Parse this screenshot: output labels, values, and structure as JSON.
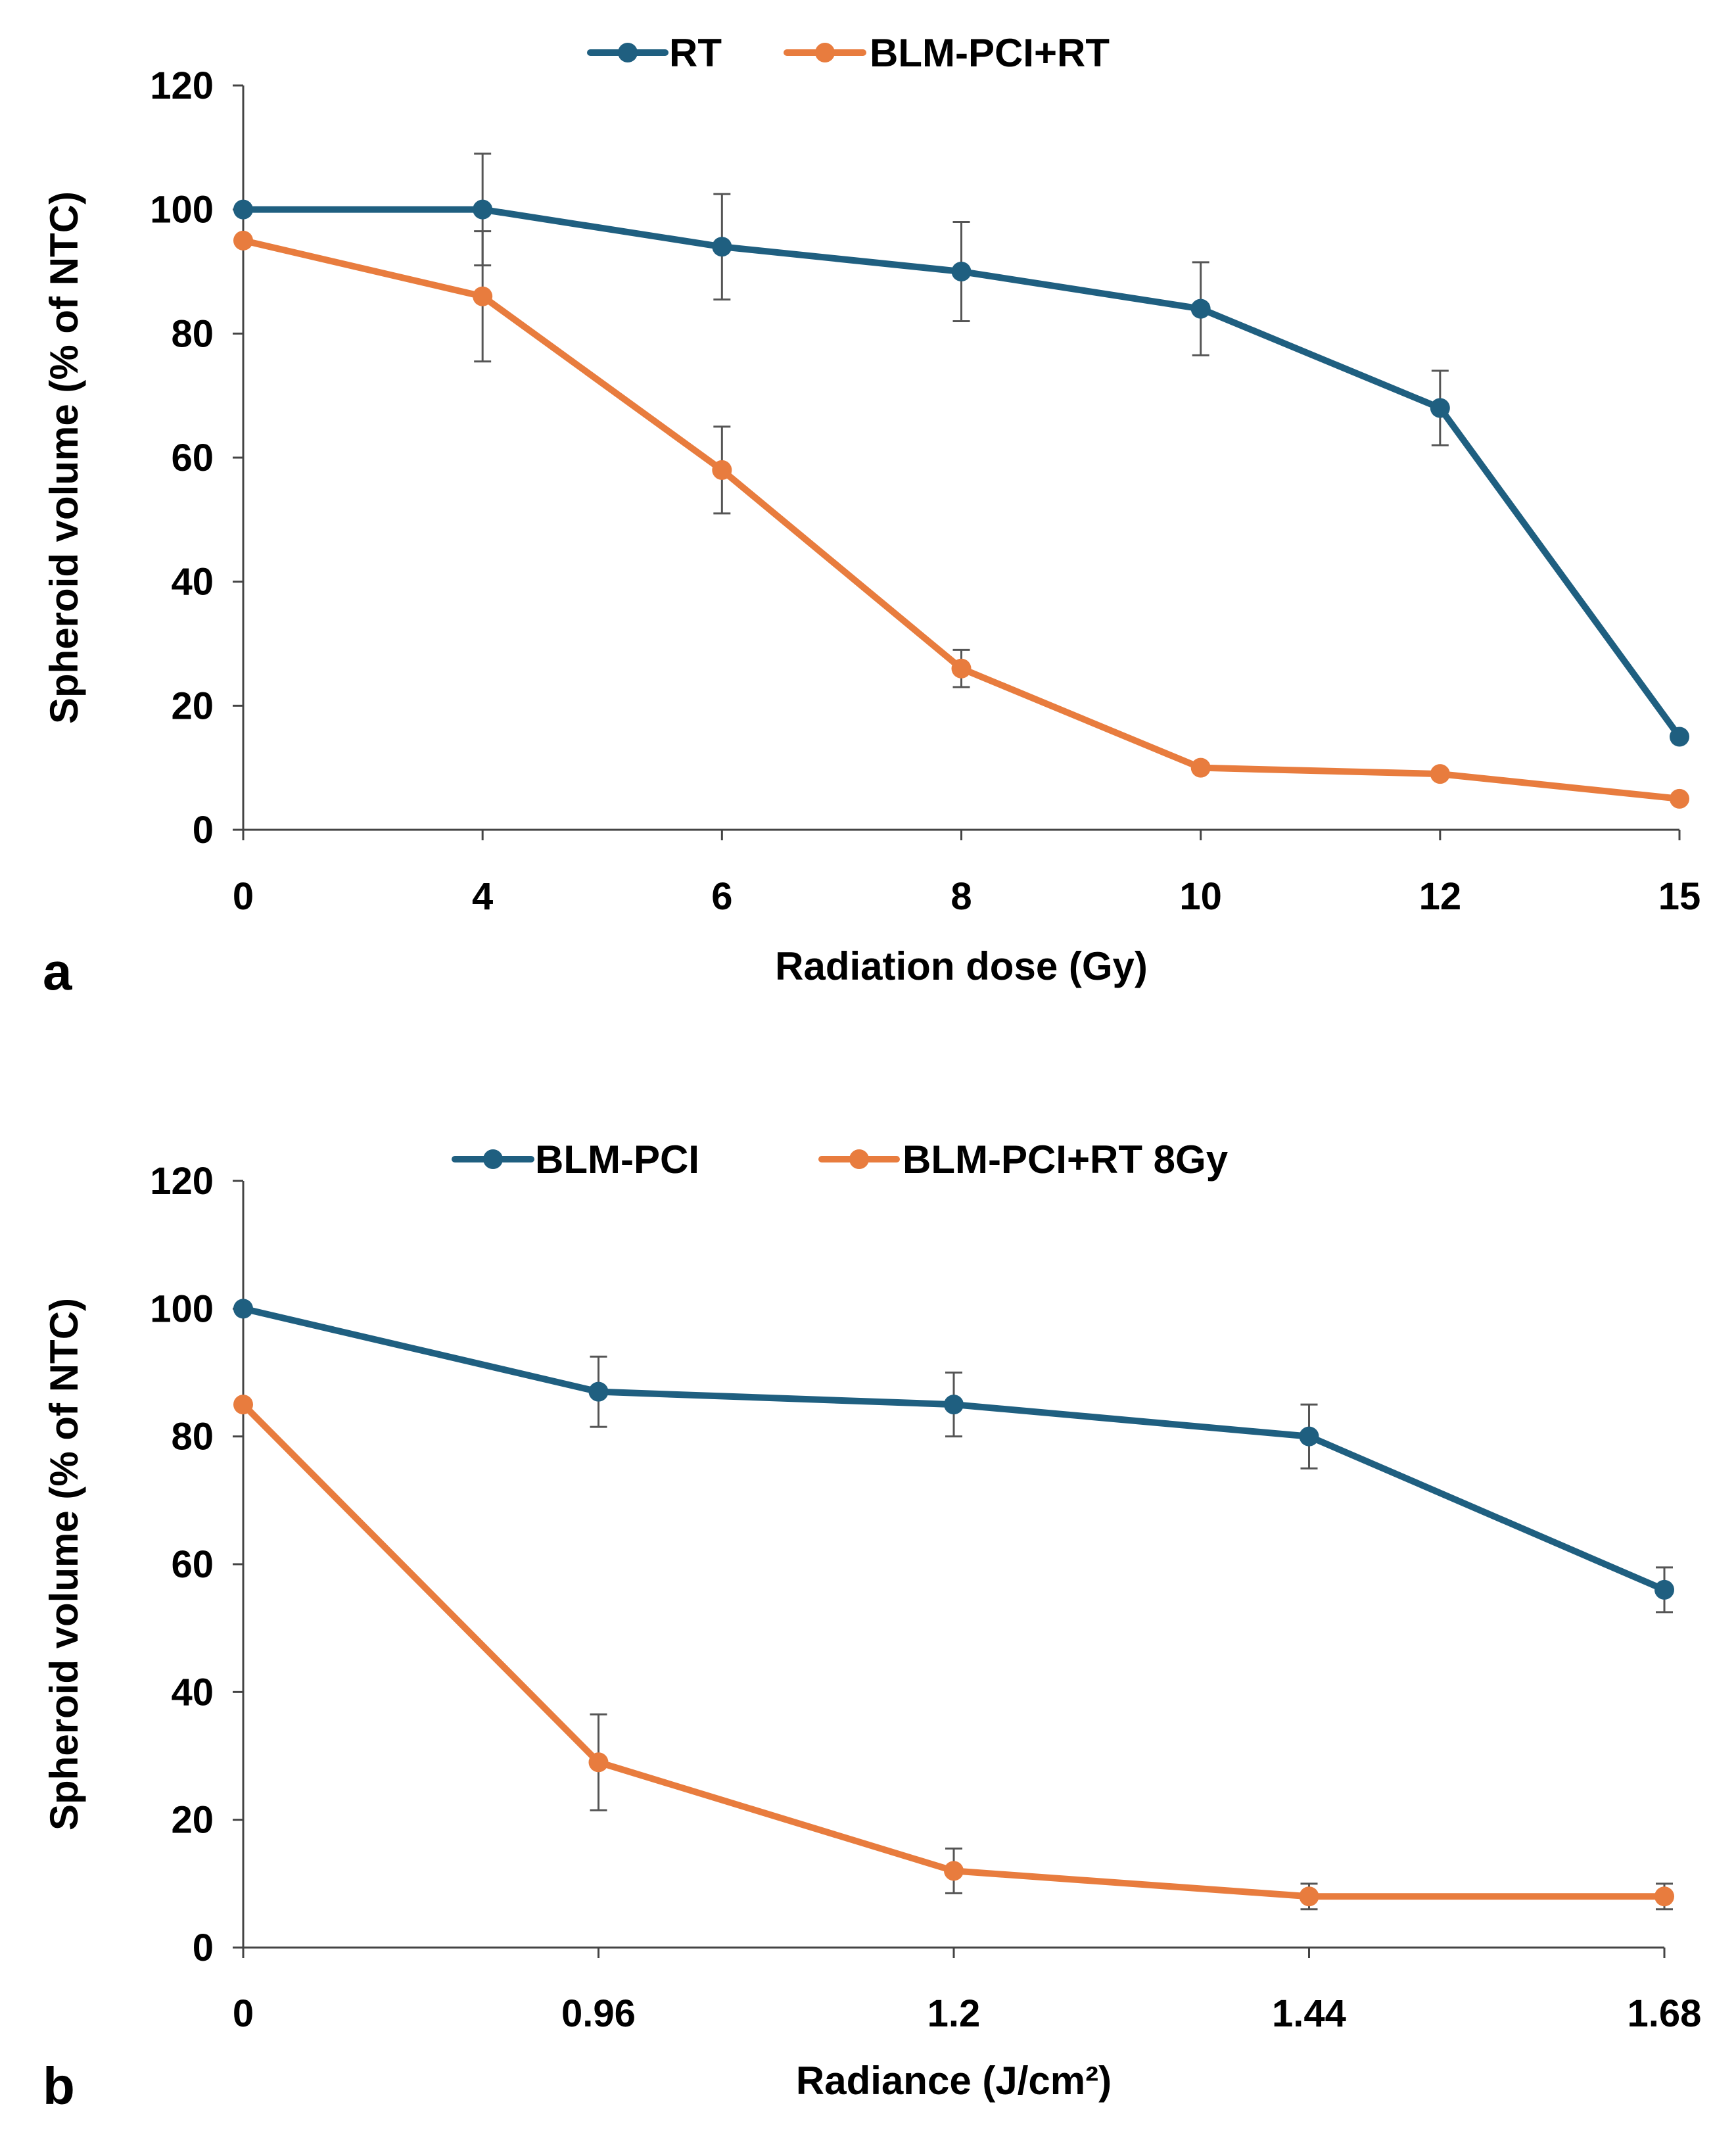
{
  "chart_data": [
    {
      "panel": "a",
      "type": "line",
      "xlabel": "Radiation dose (Gy)",
      "ylabel": "Spheroid volume (% of NTC)",
      "categories": [
        "0",
        "4",
        "6",
        "8",
        "10",
        "12",
        "15"
      ],
      "ylim": [
        0,
        120
      ],
      "yticks": [
        "0",
        "20",
        "40",
        "60",
        "80",
        "100",
        "120"
      ],
      "legend_position": "top-center",
      "series": [
        {
          "name": "RT",
          "color": "#1f5f80",
          "values": [
            100,
            100,
            94,
            90,
            84,
            68,
            15
          ],
          "errors": [
            0,
            9,
            8.5,
            8,
            7.5,
            6,
            0
          ]
        },
        {
          "name": "BLM-PCI+RT",
          "color": "#e87c3e",
          "values": [
            95,
            86,
            58,
            26,
            10,
            9,
            5
          ],
          "errors": [
            0,
            10.5,
            7,
            3,
            0,
            0,
            0
          ]
        }
      ]
    },
    {
      "panel": "b",
      "type": "line",
      "xlabel": "Radiance (J/cm²)",
      "ylabel": "Spheroid volume (% of NTC)",
      "categories": [
        "0",
        "0.96",
        "1.2",
        "1.44",
        "1.68"
      ],
      "ylim": [
        0,
        120
      ],
      "yticks": [
        "0",
        "20",
        "40",
        "60",
        "80",
        "100",
        "120"
      ],
      "legend_position": "top-center",
      "series": [
        {
          "name": "BLM-PCI",
          "color": "#1f5f80",
          "values": [
            100,
            87,
            85,
            80,
            56
          ],
          "errors": [
            0,
            5.5,
            5,
            5,
            3.5
          ]
        },
        {
          "name": "BLM-PCI+RT 8Gy",
          "color": "#e87c3e",
          "values": [
            85,
            29,
            12,
            8,
            8
          ],
          "errors": [
            0,
            7.5,
            3.5,
            2,
            2
          ]
        }
      ]
    }
  ]
}
